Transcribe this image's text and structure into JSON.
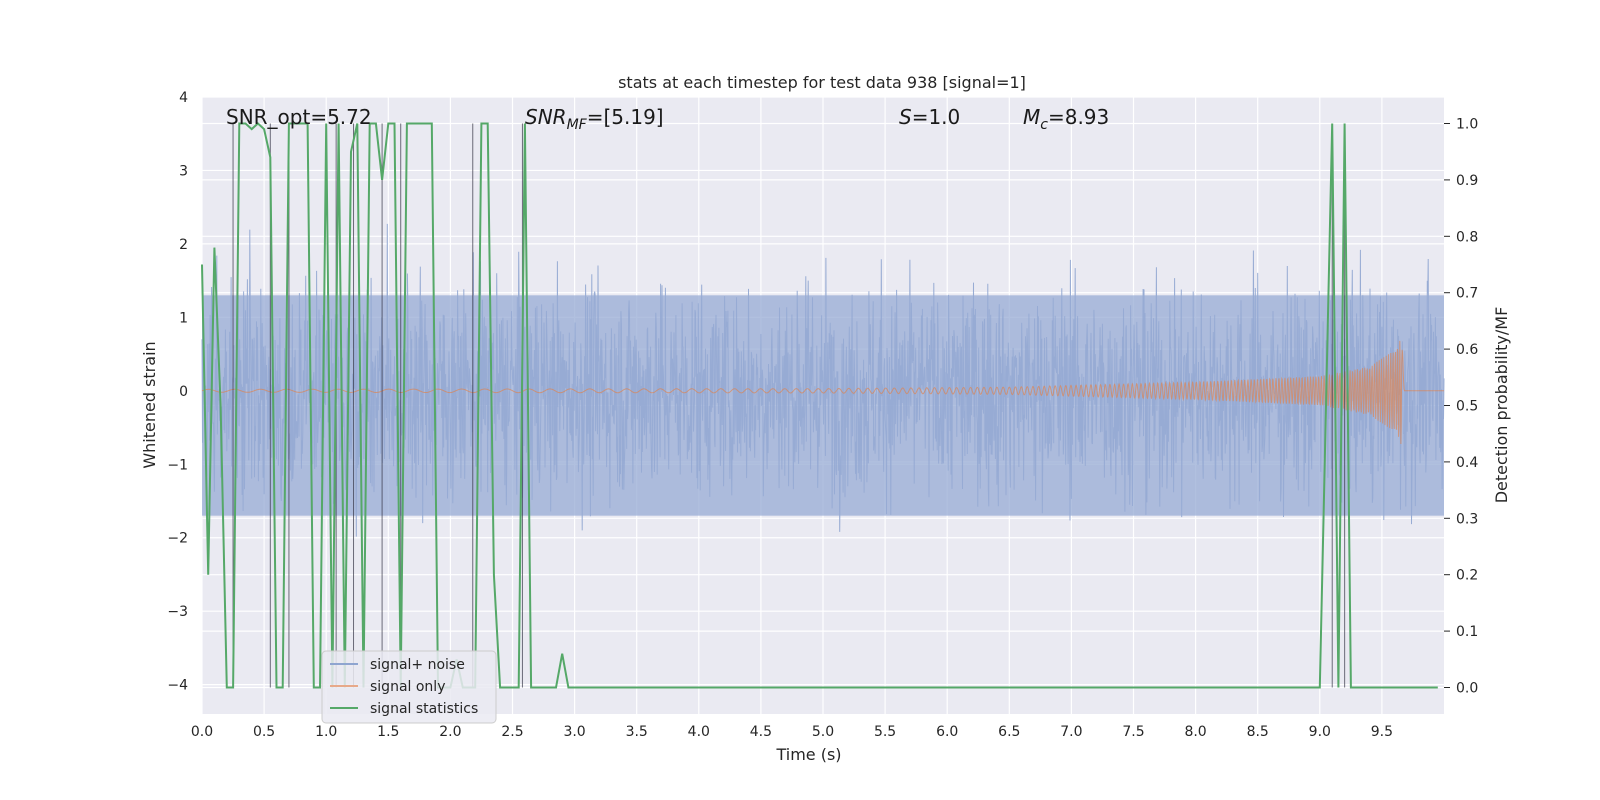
{
  "chart_data": {
    "type": "line",
    "title": "stats at each timestep for test data 938 [signal=1]",
    "xlabel": "Time (s)",
    "ylabel": "Whitened strain",
    "y2label": "Detection probability/MF",
    "xlim": [
      0.0,
      10.0
    ],
    "ylim": [
      -4.4,
      4.0
    ],
    "y2lim": [
      -0.047,
      1.047
    ],
    "x_ticks": [
      "0.0",
      "0.5",
      "1.0",
      "1.5",
      "2.0",
      "2.5",
      "3.0",
      "3.5",
      "4.0",
      "4.5",
      "5.0",
      "5.5",
      "6.0",
      "6.5",
      "7.0",
      "7.5",
      "8.0",
      "8.5",
      "9.0",
      "9.5"
    ],
    "y_ticks": [
      "4",
      "3",
      "2",
      "1",
      "0",
      "−1",
      "−2",
      "−3",
      "−4"
    ],
    "y2_ticks": [
      "1.0",
      "0.9",
      "0.8",
      "0.7",
      "0.6",
      "0.5",
      "0.4",
      "0.3",
      "0.2",
      "0.1",
      "0.0"
    ],
    "grid": true,
    "legend_position": "lower-left",
    "annotations": {
      "snr_opt": "SNR_opt=5.72",
      "snr_mf_sym": "SNR",
      "snr_mf_sub": "MF",
      "snr_mf_val": "=[5.19]",
      "s_sym": "S",
      "s_val": "=1.0",
      "mc_sym": "M",
      "mc_sub": "c",
      "mc_val": "=8.93"
    },
    "series": [
      {
        "name": "signal+ noise",
        "color": "#8fa5d0",
        "axis": "left",
        "description": "noisy whitened strain, approx ±2.5 amplitude",
        "noise_band": [
          -1.7,
          1.3
        ]
      },
      {
        "name": "signal only",
        "color": "#dd8452",
        "axis": "left",
        "envelope_points": [
          [
            0.0,
            0.02
          ],
          [
            5.0,
            0.03
          ],
          [
            6.5,
            0.05
          ],
          [
            8.0,
            0.12
          ],
          [
            9.0,
            0.2
          ],
          [
            9.4,
            0.33
          ],
          [
            9.6,
            0.55
          ],
          [
            9.66,
            0.75
          ],
          [
            9.68,
            0.0
          ]
        ]
      },
      {
        "name": "signal statistics",
        "color": "#55a868",
        "axis": "right",
        "x": [
          0.0,
          0.05,
          0.1,
          0.15,
          0.2,
          0.25,
          0.3,
          0.35,
          0.4,
          0.45,
          0.5,
          0.55,
          0.6,
          0.65,
          0.7,
          0.75,
          0.8,
          0.85,
          0.9,
          0.95,
          1.0,
          1.05,
          1.1,
          1.15,
          1.2,
          1.25,
          1.3,
          1.35,
          1.4,
          1.45,
          1.5,
          1.55,
          1.6,
          1.65,
          1.7,
          1.75,
          1.8,
          1.85,
          1.9,
          1.95,
          2.0,
          2.05,
          2.1,
          2.15,
          2.2,
          2.25,
          2.3,
          2.35,
          2.4,
          2.45,
          2.5,
          2.55,
          2.6,
          2.65,
          2.7,
          2.75,
          2.8,
          2.85,
          2.9,
          2.95,
          3.0,
          3.5,
          4.0,
          5.0,
          6.0,
          7.0,
          8.0,
          9.0,
          9.1,
          9.15,
          9.2,
          9.25,
          9.3,
          9.5,
          9.95
        ],
        "values": [
          0.75,
          0.2,
          0.78,
          0.5,
          0.0,
          0.0,
          1.0,
          1.0,
          0.99,
          1.0,
          0.99,
          0.94,
          0.0,
          0.0,
          1.0,
          1.0,
          1.0,
          1.0,
          0.0,
          0.0,
          1.0,
          0.0,
          1.0,
          0.0,
          0.95,
          1.0,
          0.0,
          1.0,
          1.0,
          0.9,
          1.0,
          1.0,
          0.0,
          1.0,
          1.0,
          1.0,
          1.0,
          1.0,
          0.0,
          0.0,
          0.0,
          0.05,
          0.0,
          0.0,
          0.0,
          1.0,
          1.0,
          0.2,
          0.0,
          0.0,
          0.0,
          0.0,
          1.0,
          0.0,
          0.0,
          0.0,
          0.0,
          0.0,
          0.06,
          0.0,
          0.0,
          0.0,
          0.0,
          0.0,
          0.0,
          0.0,
          0.0,
          0.0,
          1.0,
          0.0,
          1.0,
          0.0,
          0.0,
          0.0,
          0.0
        ]
      }
    ]
  }
}
